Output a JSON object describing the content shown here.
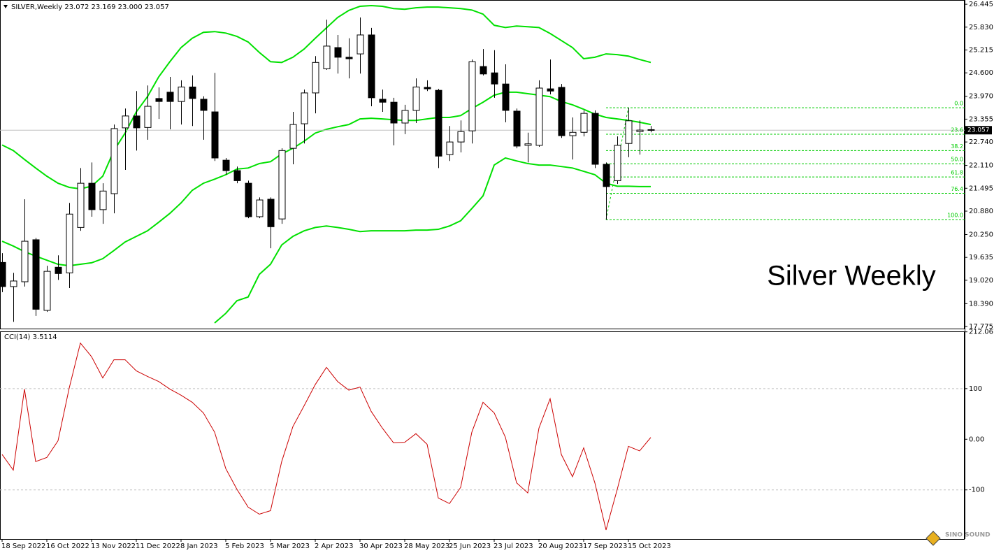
{
  "chart_data": [
    {
      "type": "candlestick",
      "title": "Silver Weekly",
      "legend": "SILVER,Weekly  23.072 23.169 23.000 23.057",
      "categories": [
        "18 Sep 2022",
        null,
        null,
        null,
        "16 Oct 2022",
        null,
        null,
        null,
        "13 Nov 2022",
        null,
        null,
        null,
        "11 Dec 2022",
        null,
        null,
        null,
        "8 Jan 2023",
        null,
        null,
        null,
        "5 Feb 2023",
        null,
        null,
        null,
        "5 Mar 2023",
        null,
        null,
        null,
        "2 Apr 2023",
        null,
        null,
        null,
        "30 Apr 2023",
        null,
        null,
        null,
        "28 May 2023",
        null,
        null,
        null,
        "25 Jun 2023",
        null,
        null,
        null,
        "23 Jul 2023",
        null,
        null,
        null,
        "20 Aug 2023",
        null,
        null,
        null,
        "17 Sep 2023",
        null,
        null,
        null,
        "15 Oct 2023",
        null,
        null
      ],
      "open": [
        19.5,
        18.85,
        18.98,
        20.11,
        18.21,
        19.37,
        19.22,
        20.44,
        21.63,
        20.92,
        21.35,
        23.12,
        23.44,
        23.13,
        23.91,
        24.08,
        23.83,
        24.22,
        23.89,
        23.55,
        22.25,
        21.97,
        21.63,
        20.73,
        21.2,
        20.67,
        22.57,
        23.23,
        24.06,
        24.71,
        25.28,
        25.02,
        25.11,
        25.62,
        23.89,
        23.81,
        23.25,
        23.59,
        24.21,
        24.13,
        22.4,
        22.74,
        23.04,
        24.77,
        24.6,
        24.3,
        23.57,
        22.65,
        22.65,
        24.17,
        24.21,
        22.91,
        23.0,
        23.51,
        22.14,
        21.7,
        22.7,
        23.02,
        23.072
      ],
      "high": [
        19.75,
        19.22,
        21.2,
        20.16,
        19.41,
        19.69,
        21.1,
        22.04,
        22.19,
        21.63,
        23.21,
        23.64,
        24.11,
        24.26,
        24.21,
        24.49,
        24.4,
        24.53,
        23.97,
        24.6,
        22.31,
        22.08,
        21.7,
        21.25,
        21.25,
        22.57,
        23.55,
        24.15,
        25.05,
        26.03,
        25.62,
        25.53,
        26.09,
        25.81,
        24.15,
        23.93,
        23.74,
        24.45,
        24.4,
        24.17,
        23.17,
        23.32,
        24.96,
        25.24,
        25.21,
        24.83,
        23.64,
        22.99,
        24.4,
        24.96,
        24.3,
        23.4,
        23.59,
        23.59,
        22.19,
        22.89,
        23.66,
        23.32,
        23.169
      ],
      "low": [
        18.7,
        17.9,
        18.85,
        18.06,
        18.17,
        19.03,
        18.81,
        20.35,
        20.73,
        20.54,
        20.82,
        21.99,
        22.51,
        22.8,
        23.36,
        23.08,
        23.21,
        23.17,
        22.8,
        22.23,
        21.86,
        21.63,
        20.69,
        20.69,
        19.88,
        20.54,
        22.14,
        22.7,
        23.51,
        24.68,
        24.58,
        24.45,
        24.58,
        23.7,
        23.55,
        22.65,
        22.95,
        23.25,
        24.11,
        22.04,
        22.23,
        22.46,
        22.7,
        24.53,
        23.93,
        23.27,
        22.57,
        22.19,
        22.61,
        24.02,
        22.85,
        22.27,
        22.89,
        22.04,
        20.65,
        21.61,
        22.33,
        22.4,
        23.0
      ],
      "close": [
        18.85,
        19.0,
        20.07,
        18.24,
        19.26,
        19.2,
        20.8,
        21.63,
        20.92,
        21.42,
        23.1,
        23.44,
        23.12,
        23.7,
        23.83,
        23.83,
        24.22,
        23.91,
        23.59,
        22.31,
        21.97,
        21.7,
        20.73,
        21.18,
        20.46,
        22.51,
        23.21,
        24.06,
        24.88,
        25.32,
        25.02,
        24.98,
        25.62,
        23.93,
        23.81,
        23.25,
        23.59,
        24.22,
        24.17,
        22.36,
        22.74,
        23.02,
        24.9,
        24.57,
        24.3,
        23.59,
        22.63,
        22.69,
        24.19,
        24.11,
        22.91,
        23.0,
        23.51,
        22.14,
        21.54,
        22.65,
        23.31,
        23.06,
        23.057
      ],
      "up_color": "#ffffff",
      "down_color": "#000000",
      "overlays": [
        {
          "color": "#00e000",
          "values": [
            22.66,
            22.51,
            22.27,
            22.04,
            21.82,
            21.63,
            21.52,
            21.48,
            21.55,
            21.82,
            22.51,
            22.98,
            23.55,
            23.96,
            24.49,
            24.9,
            25.28,
            25.53,
            25.69,
            25.71,
            25.67,
            25.58,
            25.43,
            25.15,
            24.9,
            24.88,
            25.02,
            25.24,
            25.53,
            25.81,
            26.09,
            26.28,
            26.39,
            26.41,
            26.39,
            26.33,
            26.31,
            26.35,
            26.37,
            26.37,
            26.35,
            26.33,
            26.29,
            26.18,
            25.88,
            25.82,
            25.86,
            25.84,
            25.82,
            25.66,
            25.47,
            25.28,
            24.98,
            25.02,
            25.11,
            25.09,
            25.05,
            24.96,
            24.88
          ]
        },
        {
          "color": "#00e000",
          "values": [
            20.07,
            19.94,
            19.79,
            19.67,
            19.56,
            19.45,
            19.41,
            19.45,
            19.49,
            19.6,
            19.82,
            20.05,
            20.2,
            20.35,
            20.58,
            20.82,
            21.1,
            21.44,
            21.63,
            21.74,
            21.86,
            22.01,
            22.04,
            22.16,
            22.21,
            22.42,
            22.57,
            22.76,
            22.98,
            23.08,
            23.15,
            23.21,
            23.36,
            23.38,
            23.36,
            23.34,
            23.32,
            23.32,
            23.36,
            23.4,
            23.4,
            23.45,
            23.64,
            23.81,
            24.0,
            24.08,
            24.08,
            24.04,
            24.0,
            23.96,
            23.83,
            23.74,
            23.62,
            23.49,
            23.4,
            23.36,
            23.32,
            23.27,
            23.21
          ]
        },
        {
          "color": "#00e000",
          "values": [
            null,
            null,
            null,
            null,
            null,
            null,
            null,
            null,
            null,
            null,
            null,
            null,
            null,
            null,
            null,
            null,
            null,
            null,
            null,
            17.87,
            18.13,
            18.47,
            18.57,
            19.18,
            19.45,
            19.97,
            20.2,
            20.35,
            20.44,
            20.48,
            20.44,
            20.39,
            20.33,
            20.35,
            20.35,
            20.35,
            20.35,
            20.37,
            20.37,
            20.39,
            20.48,
            20.62,
            20.95,
            21.29,
            22.12,
            22.31,
            22.23,
            22.16,
            22.12,
            22.12,
            22.08,
            22.04,
            21.95,
            21.86,
            21.63,
            21.55,
            21.55,
            21.54,
            21.54
          ]
        }
      ],
      "fibonacci": {
        "color": "#00cc00",
        "high": 23.66,
        "low": 20.65,
        "levels": [
          {
            "value": 0,
            "label": "0.0"
          },
          23.6,
          38.2,
          {
            "value": 50,
            "label": "50.0"
          },
          61.8,
          76.4,
          {
            "value": 100,
            "label": "100.0"
          }
        ]
      },
      "current_price": 23.057,
      "ylim": [
        17.72,
        26.56
      ],
      "yticks": [
        26.445,
        {
          "value": 25.83,
          "label": "25.830"
        },
        25.215,
        {
          "value": 24.6,
          "label": "24.600"
        },
        {
          "value": 23.97,
          "label": "23.970"
        },
        23.355,
        {
          "value": 22.74,
          "label": "22.740"
        },
        {
          "value": 22.11,
          "label": "22.110"
        },
        21.495,
        {
          "value": 20.88,
          "label": "20.880"
        },
        {
          "value": 20.25,
          "label": "20.250"
        },
        19.635,
        {
          "value": 19.02,
          "label": "19.020"
        },
        {
          "value": 18.39,
          "label": "18.390"
        },
        17.775
      ]
    },
    {
      "type": "line",
      "title": "CCI(14) 3.5114",
      "color": "#cc0000",
      "values": [
        -30,
        -61,
        99,
        -44,
        -36,
        -3,
        101,
        190,
        163,
        121,
        157,
        157,
        135,
        124,
        114,
        99,
        87,
        73,
        52,
        14,
        -58,
        -99,
        -134,
        -148,
        -141,
        -44,
        25,
        66,
        108,
        142,
        114,
        97,
        103,
        55,
        22,
        -7,
        -6,
        11,
        -10,
        -116,
        -127,
        -95,
        14,
        73,
        52,
        4,
        -86,
        -106,
        22,
        80,
        -30,
        -74,
        -17,
        -86,
        -179,
        -99,
        -14,
        -23,
        3.5114
      ],
      "ylim": [
        -197,
        213
      ],
      "yticks": [
        212.067,
        100,
        {
          "value": 0,
          "label": "0.00"
        },
        -100
      ],
      "levels": [
        100,
        -100
      ]
    }
  ],
  "watermark": "SINO SOUND"
}
